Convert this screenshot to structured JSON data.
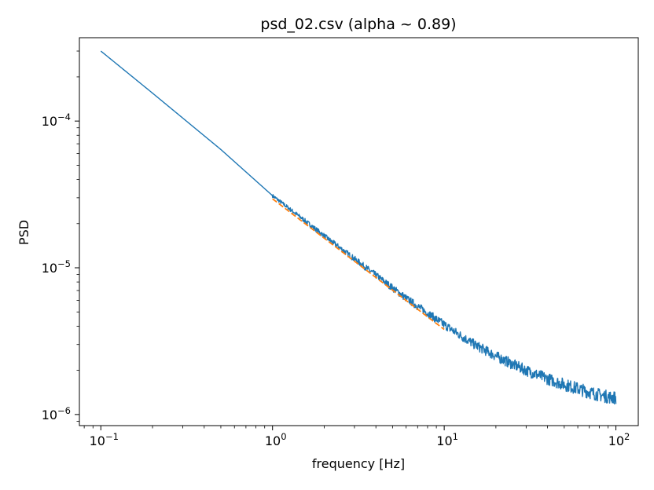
{
  "chart_data": {
    "type": "line",
    "title": "psd_02.csv (alpha ~ 0.89)",
    "xlabel": "frequency [Hz]",
    "ylabel": "PSD",
    "xscale": "log",
    "yscale": "log",
    "xlim": [
      0.075,
      135
    ],
    "ylim": [
      8.4e-07,
      0.00037
    ],
    "grid": false,
    "xticks": [
      {
        "value": 0.1,
        "base": "10",
        "exp": "−1"
      },
      {
        "value": 1,
        "base": "10",
        "exp": "0"
      },
      {
        "value": 10,
        "base": "10",
        "exp": "1"
      },
      {
        "value": 100,
        "base": "10",
        "exp": "2"
      }
    ],
    "yticks": [
      {
        "value": 1e-06,
        "base": "10",
        "exp": "−6"
      },
      {
        "value": 1e-05,
        "base": "10",
        "exp": "−5"
      },
      {
        "value": 0.0001,
        "base": "10",
        "exp": "−4"
      }
    ],
    "series": [
      {
        "color": "#1f77b4",
        "style": "solid",
        "x": [
          0.1,
          0.2,
          0.5,
          1,
          1.5,
          2,
          3,
          4,
          5,
          6,
          8,
          10,
          12,
          15,
          20,
          25,
          30,
          40,
          50,
          60,
          70,
          80,
          90,
          100
        ],
        "y": [
          0.0003,
          0.000155,
          6.4e-05,
          3.1e-05,
          2.15e-05,
          1.65e-05,
          1.15e-05,
          8.9e-06,
          7.3e-06,
          6.2e-06,
          4.9e-06,
          4.1e-06,
          3.55e-06,
          3e-06,
          2.5e-06,
          2.2e-06,
          2e-06,
          1.75e-06,
          1.6e-06,
          1.5e-06,
          1.42e-06,
          1.36e-06,
          1.32e-06,
          1.3e-06
        ],
        "noise": true
      },
      {
        "color": "#ff7f0e",
        "style": "dashed",
        "x": [
          1,
          10
        ],
        "y": [
          2.95e-05,
          3.8e-06
        ]
      }
    ]
  }
}
